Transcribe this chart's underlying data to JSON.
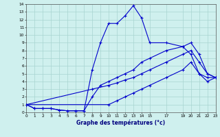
{
  "xlabel": "Graphe des températures (°c)",
  "bg_color": "#cff0ee",
  "grid_color": "#a8d4d0",
  "line_color": "#0000cc",
  "xlim": [
    0,
    23
  ],
  "ylim": [
    0,
    14
  ],
  "xtick_vals": [
    0,
    1,
    2,
    3,
    4,
    5,
    6,
    7,
    8,
    9,
    10,
    11,
    12,
    13,
    14,
    15,
    17,
    19,
    20,
    21,
    22,
    23
  ],
  "ytick_vals": [
    0,
    1,
    2,
    3,
    4,
    5,
    6,
    7,
    8,
    9,
    10,
    11,
    12,
    13,
    14
  ],
  "line1_x": [
    0,
    1,
    2,
    3,
    4,
    5,
    6,
    7,
    8,
    9,
    10,
    11,
    12,
    13,
    14,
    15,
    17,
    19,
    20,
    21,
    22,
    23
  ],
  "line1_y": [
    1.0,
    0.5,
    0.5,
    0.5,
    0.3,
    0.2,
    0.2,
    0.2,
    5.5,
    9.0,
    11.5,
    11.5,
    12.5,
    13.8,
    12.2,
    9.0,
    9.0,
    8.5,
    7.5,
    5.0,
    4.5,
    4.5
  ],
  "line2_x": [
    0,
    1,
    2,
    3,
    4,
    5,
    6,
    7,
    8,
    9,
    10,
    11,
    12,
    13,
    14,
    15,
    17,
    19,
    20,
    21,
    22,
    23
  ],
  "line2_y": [
    1.0,
    0.5,
    0.5,
    0.5,
    0.3,
    0.2,
    0.2,
    0.2,
    2.0,
    3.5,
    4.0,
    4.5,
    5.0,
    5.5,
    6.5,
    7.0,
    8.0,
    8.5,
    9.0,
    7.5,
    5.0,
    4.5
  ],
  "line3_x": [
    0,
    8,
    10,
    11,
    12,
    13,
    14,
    15,
    17,
    19,
    20,
    21,
    22,
    23
  ],
  "line3_y": [
    1.0,
    3.0,
    3.5,
    3.8,
    4.2,
    4.5,
    5.0,
    5.5,
    6.5,
    7.5,
    8.0,
    6.5,
    5.0,
    4.5
  ],
  "line4_x": [
    0,
    10,
    11,
    12,
    13,
    14,
    15,
    17,
    19,
    20,
    21,
    22,
    23
  ],
  "line4_y": [
    1.0,
    1.0,
    1.5,
    2.0,
    2.5,
    3.0,
    3.5,
    4.5,
    5.5,
    6.5,
    5.0,
    4.0,
    4.5
  ]
}
